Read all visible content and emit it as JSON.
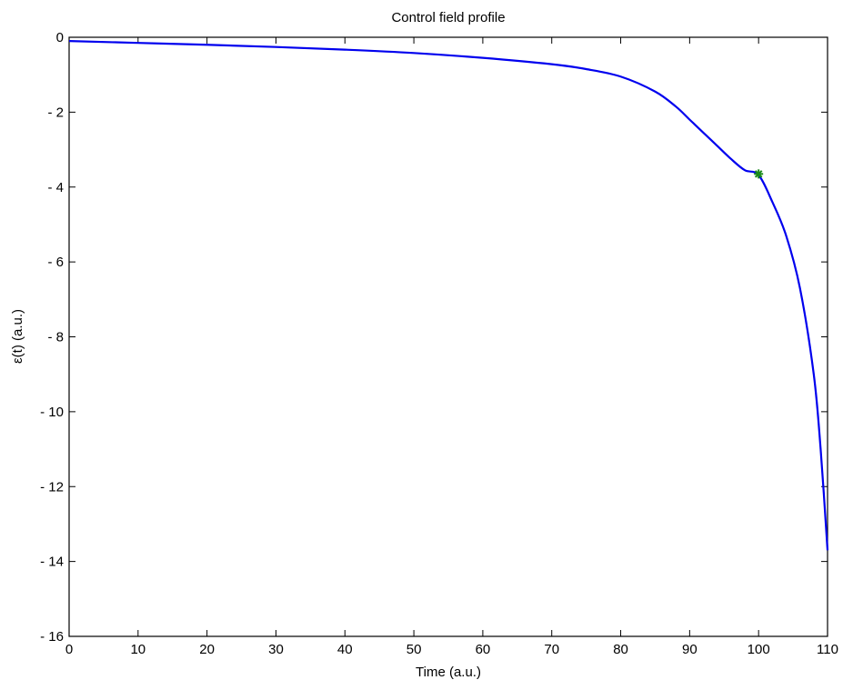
{
  "chart_data": {
    "type": "line",
    "title": "Control field profile",
    "xlabel": "Time (a.u.)",
    "ylabel": "ε(t) (a.u.)",
    "xlim": [
      0,
      110
    ],
    "ylim": [
      -16,
      0
    ],
    "xticks": [
      0,
      10,
      20,
      30,
      40,
      50,
      60,
      70,
      80,
      90,
      100,
      110
    ],
    "yticks": [
      0,
      -2,
      -4,
      -6,
      -8,
      -10,
      -12,
      -14,
      -16
    ],
    "xtick_labels": [
      "0",
      "10",
      "20",
      "30",
      "40",
      "50",
      "60",
      "70",
      "80",
      "90",
      "100",
      "110"
    ],
    "ytick_labels": [
      "0",
      "- 2",
      "- 4",
      "- 6",
      "- 8",
      "- 10",
      "- 12",
      "- 14",
      "- 16"
    ],
    "grid": false,
    "series": [
      {
        "color": "#0000ee",
        "x": [
          0,
          10,
          20,
          30,
          40,
          50,
          60,
          70,
          75,
          80,
          85,
          88,
          90,
          92,
          94,
          96,
          98,
          100,
          102,
          104,
          106,
          108,
          109,
          110
        ],
        "y": [
          -0.1,
          -0.15,
          -0.2,
          -0.26,
          -0.33,
          -0.42,
          -0.55,
          -0.72,
          -0.85,
          -1.05,
          -1.45,
          -1.85,
          -2.2,
          -2.55,
          -2.9,
          -3.25,
          -3.55,
          -3.68,
          -4.4,
          -5.3,
          -6.7,
          -9.0,
          -11.0,
          -13.7
        ]
      }
    ],
    "markers": [
      {
        "x": 100,
        "y": -3.65,
        "color": "#1a8a1a",
        "symbol": "asterisk"
      }
    ]
  }
}
